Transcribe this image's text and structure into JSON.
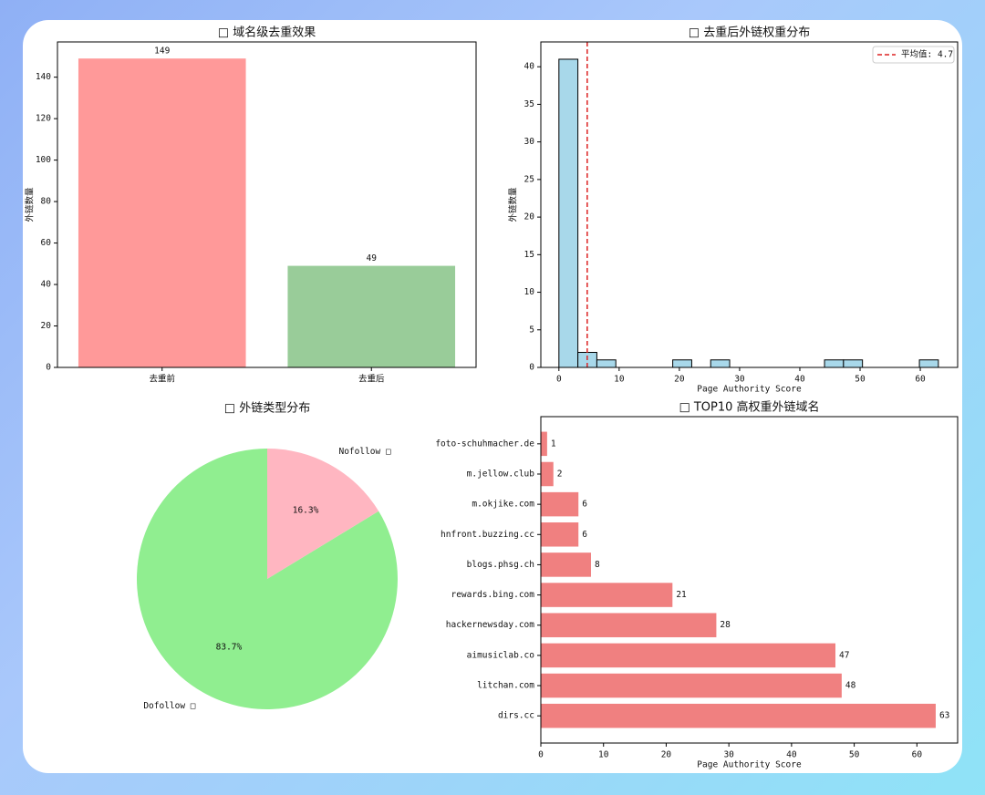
{
  "chart_data": [
    {
      "type": "bar",
      "title": "□ 域名级去重效果",
      "ylabel": "外链数量",
      "categories": [
        "去重前",
        "去重后"
      ],
      "values": [
        149,
        49
      ],
      "colors": [
        "#ff9999",
        "#99cc99"
      ],
      "ylim": [
        0,
        157
      ],
      "yticks": [
        0,
        20,
        40,
        60,
        80,
        100,
        120,
        140
      ]
    },
    {
      "type": "histogram",
      "title": "□ 去重后外链权重分布",
      "xlabel": "Page Authority Score",
      "ylabel": "外链数量",
      "bins": [
        0,
        3.15,
        6.3,
        9.45,
        12.6,
        15.75,
        18.9,
        22.05,
        25.2,
        28.35,
        31.5,
        34.65,
        37.8,
        40.95,
        44.1,
        47.25,
        50.4,
        53.55,
        56.7,
        59.85,
        63
      ],
      "values": [
        41,
        2,
        1,
        0,
        0,
        0,
        1,
        0,
        1,
        0,
        0,
        0,
        0,
        0,
        1,
        1,
        0,
        0,
        0,
        1
      ],
      "color": "#a8d8ea",
      "mean": {
        "value": 4.7,
        "label": "平均值: 4.7"
      },
      "mean_color": "#dd2222",
      "legend": "upper right",
      "xlim": [
        -3.0,
        66.2
      ],
      "xticks": [
        0,
        10,
        20,
        30,
        40,
        50,
        60
      ],
      "ylim": [
        0,
        43.3
      ],
      "yticks": [
        0,
        5,
        10,
        15,
        20,
        25,
        30,
        35,
        40
      ]
    },
    {
      "type": "pie",
      "title": "□ 外链类型分布",
      "categories": [
        "Dofollow □",
        "Nofollow □"
      ],
      "values": [
        83.7,
        16.3
      ],
      "value_labels": [
        "83.7%",
        "16.3%"
      ],
      "colors": [
        "#90ee90",
        "#ffb6c1"
      ]
    },
    {
      "type": "hbar",
      "title": "□ TOP10 高权重外链域名",
      "xlabel": "Page Authority Score",
      "categories": [
        "foto-schuhmacher.de",
        "m.jellow.club",
        "m.okjike.com",
        "hnfront.buzzing.cc",
        "blogs.phsg.ch",
        "rewards.bing.com",
        "hackernewsday.com",
        "aimusiclab.co",
        "litchan.com",
        "dirs.cc"
      ],
      "values": [
        1,
        2,
        6,
        6,
        8,
        21,
        28,
        47,
        48,
        63
      ],
      "color": "#f08080",
      "xlim": [
        0,
        66.5
      ],
      "xticks": [
        0,
        10,
        20,
        30,
        40,
        50,
        60
      ]
    }
  ]
}
